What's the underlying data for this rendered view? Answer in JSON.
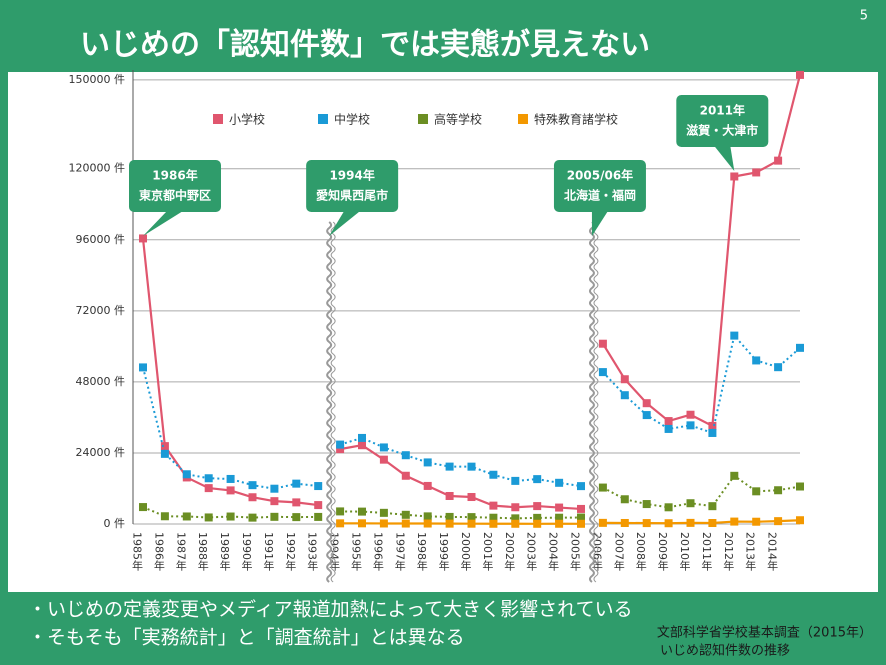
{
  "page_number": "5",
  "title": "いじめの「認知件数」では実態が見えない",
  "chart_data": {
    "type": "line",
    "categories": [
      "1985年",
      "1986年",
      "1987年",
      "1988年",
      "1989年",
      "1990年",
      "1991年",
      "1992年",
      "1993年",
      "1994年",
      "1995年",
      "1996年",
      "1997年",
      "1998年",
      "1999年",
      "2000年",
      "2001年",
      "2002年",
      "2003年",
      "2004年",
      "2005年",
      "2006年",
      "2007年",
      "2008年",
      "2009年",
      "2010年",
      "2011年",
      "2012年",
      "2013年",
      "2014年",
      null
    ],
    "ylim": [
      0,
      152000
    ],
    "yticks": [
      {
        "value": 0,
        "label": "0 件"
      },
      {
        "value": 24000,
        "label": "24000 件"
      },
      {
        "value": 48000,
        "label": "48000 件"
      },
      {
        "value": 72000,
        "label": "72000 件"
      },
      {
        "value": 96000,
        "label": "96000 件"
      },
      {
        "value": 120000,
        "label": "120000 件"
      },
      {
        "value": 150000,
        "label": "150000 件"
      }
    ],
    "grid": true,
    "legend": "top",
    "series": [
      {
        "name": "小学校",
        "color": "#e0566e",
        "style": "solid",
        "values": [
          96457,
          26306,
          15727,
          12122,
          11350,
          9035,
          7718,
          7300,
          6390,
          25295,
          26614,
          21733,
          16294,
          12858,
          9462,
          9114,
          6206,
          5659,
          6051,
          5551,
          5087,
          60897,
          48896,
          40807,
          34766,
          36909,
          33124,
          117384,
          118748,
          122734,
          151692
        ]
      },
      {
        "name": "中学校",
        "color": "#1a9ad6",
        "style": "dotted",
        "values": [
          52891,
          23690,
          16796,
          15452,
          15215,
          13121,
          11922,
          13632,
          12817,
          26828,
          29069,
          25862,
          23234,
          20801,
          19383,
          19371,
          16635,
          14562,
          15159,
          13915,
          12794,
          51310,
          43505,
          36795,
          32111,
          33323,
          30749,
          63634,
          55248,
          52971,
          59502
        ]
      },
      {
        "name": "高等学校",
        "color": "#6b8e23",
        "style": "dotted",
        "values": [
          5718,
          2614,
          2544,
          2212,
          2523,
          2152,
          2422,
          2326,
          2391,
          4253,
          4184,
          3771,
          3103,
          2576,
          2391,
          2327,
          2119,
          1906,
          2070,
          2121,
          2191,
          12307,
          8355,
          6737,
          5642,
          7018,
          6020,
          16274,
          11039,
          11404,
          12664
        ]
      },
      {
        "name": "特殊教育諸学校",
        "color": "#f39800",
        "style": "solid",
        "values": [
          null,
          null,
          null,
          null,
          null,
          null,
          null,
          null,
          null,
          225,
          229,
          178,
          159,
          161,
          123,
          106,
          77,
          78,
          71,
          84,
          71,
          384,
          341,
          309,
          259,
          380,
          338,
          817,
          768,
          963,
          1274
        ]
      }
    ],
    "annotations": [
      {
        "category": "1985年",
        "lines": [
          "1986年",
          "東京都中野区"
        ]
      },
      {
        "category": "1994年",
        "lines": [
          "1994年",
          "愛知県西尾市"
        ],
        "break": true
      },
      {
        "category": "2006年",
        "lines": [
          "2005/06年",
          "北海道・福岡"
        ],
        "break": true
      },
      {
        "category": "2012年",
        "lines": [
          "2011年",
          "滋賀・大津市"
        ]
      }
    ]
  },
  "bullets": [
    "・いじめの定義変更やメディア報道加熱によって大きく影響されている",
    "・そもそも「実務統計」と「調査統計」とは異なる"
  ],
  "source": [
    "文部科学省学校基本調査（2015年）",
    "いじめ認知件数の推移"
  ]
}
